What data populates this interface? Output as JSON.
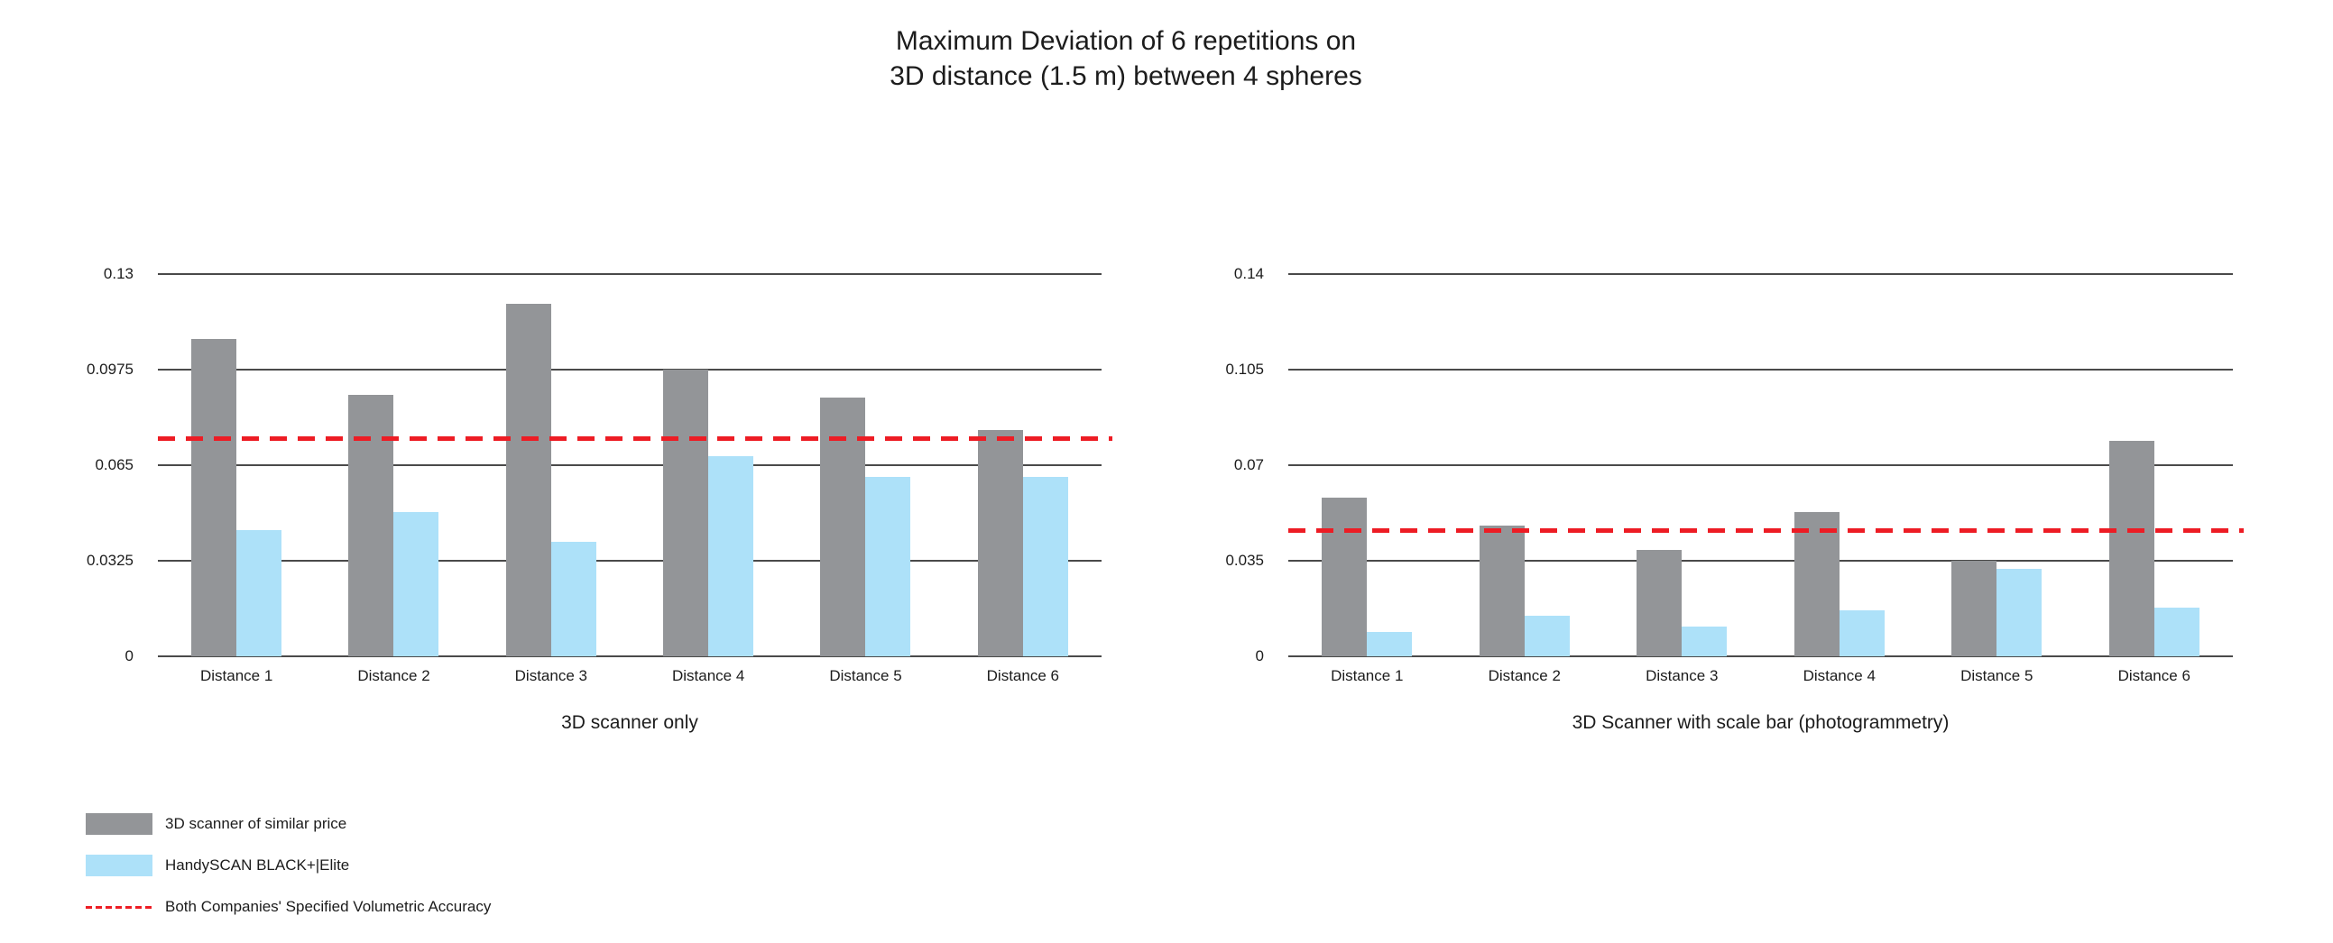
{
  "title": {
    "line1": "Maximum Deviation of 6 repetitions on",
    "line2": "3D distance (1.5 m) between 4 spheres"
  },
  "colors": {
    "series_gray": "#939598",
    "series_blue": "#ade1f9",
    "reference_red": "#ed1c24",
    "gridline": "#4a4a4a"
  },
  "legend": {
    "items": [
      {
        "swatch": "gray-filled-square",
        "label": "3D scanner of similar price"
      },
      {
        "swatch": "blue-filled-square",
        "label": "HandySCAN BLACK+|Elite"
      },
      {
        "swatch": "red-dashed-line",
        "label": "Both Companies' Specified Volumetric Accuracy"
      }
    ]
  },
  "chart_data": [
    {
      "type": "bar",
      "title": "3D scanner only",
      "categories": [
        "Distance 1",
        "Distance 2",
        "Distance 3",
        "Distance 4",
        "Distance 5",
        "Distance 6"
      ],
      "series": [
        {
          "name": "3D scanner of similar price",
          "color": "#939598",
          "values": [
            0.108,
            0.089,
            0.12,
            0.0975,
            0.088,
            0.077
          ]
        },
        {
          "name": "HandySCAN BLACK+|Elite",
          "color": "#ade1f9",
          "values": [
            0.043,
            0.049,
            0.039,
            0.068,
            0.061,
            0.061
          ]
        }
      ],
      "reference_line": {
        "label": "Both Companies' Specified Volumetric Accuracy",
        "value": 0.074,
        "color": "#ed1c24",
        "style": "dashed"
      },
      "ylim": [
        0,
        0.13
      ],
      "yticks": [
        {
          "value": 0,
          "label": "0"
        },
        {
          "value": 0.0325,
          "label": "0.0325"
        },
        {
          "value": 0.065,
          "label": "0.065"
        },
        {
          "value": 0.0975,
          "label": "0.0975"
        },
        {
          "value": 0.13,
          "label": "0.13"
        }
      ],
      "grid": true,
      "legend_position": "bottom-left"
    },
    {
      "type": "bar",
      "title": "3D Scanner with scale bar (photogrammetry)",
      "categories": [
        "Distance 1",
        "Distance 2",
        "Distance 3",
        "Distance 4",
        "Distance 5",
        "Distance 6"
      ],
      "series": [
        {
          "name": "3D scanner of similar price",
          "color": "#939598",
          "values": [
            0.058,
            0.048,
            0.039,
            0.053,
            0.035,
            0.079
          ]
        },
        {
          "name": "HandySCAN BLACK+|Elite",
          "color": "#ade1f9",
          "values": [
            0.009,
            0.015,
            0.011,
            0.017,
            0.032,
            0.018
          ]
        }
      ],
      "reference_line": {
        "label": "Both Companies' Specified Volumetric Accuracy",
        "value": 0.046,
        "color": "#ed1c24",
        "style": "dashed"
      },
      "ylim": [
        0,
        0.14
      ],
      "yticks": [
        {
          "value": 0,
          "label": "0"
        },
        {
          "value": 0.035,
          "label": "0.035"
        },
        {
          "value": 0.07,
          "label": "0.07"
        },
        {
          "value": 0.105,
          "label": "0.105"
        },
        {
          "value": 0.14,
          "label": "0.14"
        }
      ],
      "grid": true,
      "legend_position": "bottom-left"
    }
  ]
}
